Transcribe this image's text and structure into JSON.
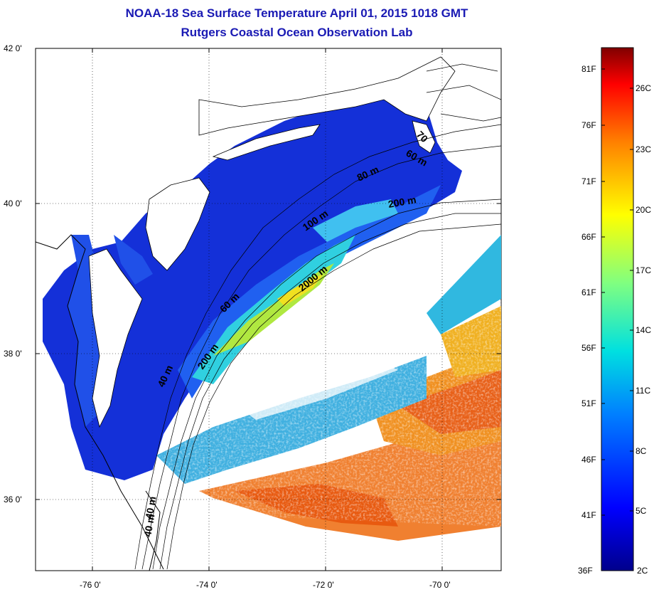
{
  "title": {
    "line1": "NOAA-18 Sea Surface Temperature April 01, 2015 1018 GMT",
    "line2": "Rutgers Coastal Ocean Observation Lab"
  },
  "map": {
    "lat_labels": [
      "42 0'",
      "40 0'",
      "38 0'",
      "36 0'"
    ],
    "lon_labels": [
      "-76 0'",
      "-74 0'",
      "-72 0'",
      "-70 0'"
    ],
    "isobath_labels": [
      "60 m",
      "80 m",
      "100 m",
      "200 m",
      "2000 m",
      "60 m",
      "200 m",
      "40 m",
      "40 m",
      "40 m",
      "70"
    ],
    "colors": {
      "cold": "#1010c8",
      "cool": "#2070e8",
      "mid": "#40d0d0",
      "warm": "#f0e020",
      "hot": "#f06010"
    }
  },
  "colorbar": {
    "fahrenheit": [
      "81F",
      "76F",
      "71F",
      "66F",
      "61F",
      "56F",
      "51F",
      "46F",
      "41F",
      "36F"
    ],
    "celsius": [
      "26C",
      "23C",
      "20C",
      "17C",
      "14C",
      "11C",
      "8C",
      "5C",
      "2C"
    ]
  }
}
